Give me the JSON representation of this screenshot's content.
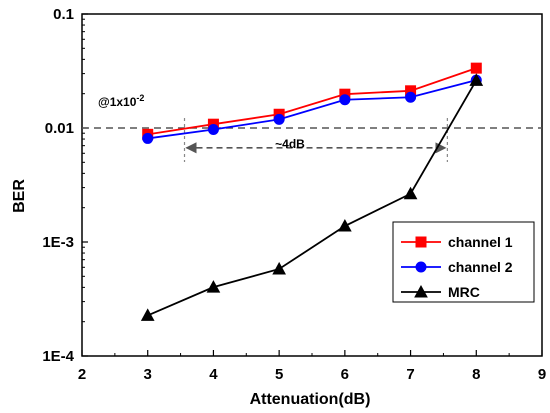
{
  "chart_data": {
    "type": "line",
    "xlabel": "Attenuation(dB)",
    "ylabel": "BER",
    "xlim": [
      2,
      9
    ],
    "ylim": [
      0.0001,
      0.1
    ],
    "yscale": "log",
    "x_ticks": [
      "2",
      "3",
      "4",
      "5",
      "6",
      "7",
      "8",
      "9"
    ],
    "y_ticks": [
      {
        "value": 0.1,
        "label": "0.1"
      },
      {
        "value": 0.01,
        "label": "0.01"
      },
      {
        "value": 0.001,
        "label": "1E-3"
      },
      {
        "value": 0.0001,
        "label": "1E-4"
      }
    ],
    "grid": false,
    "legend_position": "bottom-right",
    "series": [
      {
        "name": "channel 1",
        "color": "#ff0000",
        "marker": "square",
        "x": [
          3,
          4,
          5,
          6,
          7,
          8
        ],
        "y": [
          0.0088,
          0.0108,
          0.0132,
          0.0198,
          0.0212,
          0.0335
        ]
      },
      {
        "name": "channel 2",
        "color": "#0000ff",
        "marker": "circle",
        "x": [
          3,
          4,
          5,
          6,
          7,
          8
        ],
        "y": [
          0.0081,
          0.0097,
          0.0119,
          0.0177,
          0.0186,
          0.0263
        ]
      },
      {
        "name": "MRC",
        "color": "#000000",
        "marker": "triangle",
        "x": [
          3,
          4,
          5,
          6,
          7,
          8
        ],
        "y": [
          0.000227,
          0.000402,
          0.00058,
          0.00138,
          0.00265,
          0.0262
        ]
      }
    ],
    "annotations": {
      "threshold_label": "@1x10",
      "threshold_exp": "-2",
      "threshold_value": 0.01,
      "gain_label": "~4dB",
      "gain_from_x": 3.56,
      "gain_to_x": 7.56,
      "gain_y": 0.0067
    }
  }
}
